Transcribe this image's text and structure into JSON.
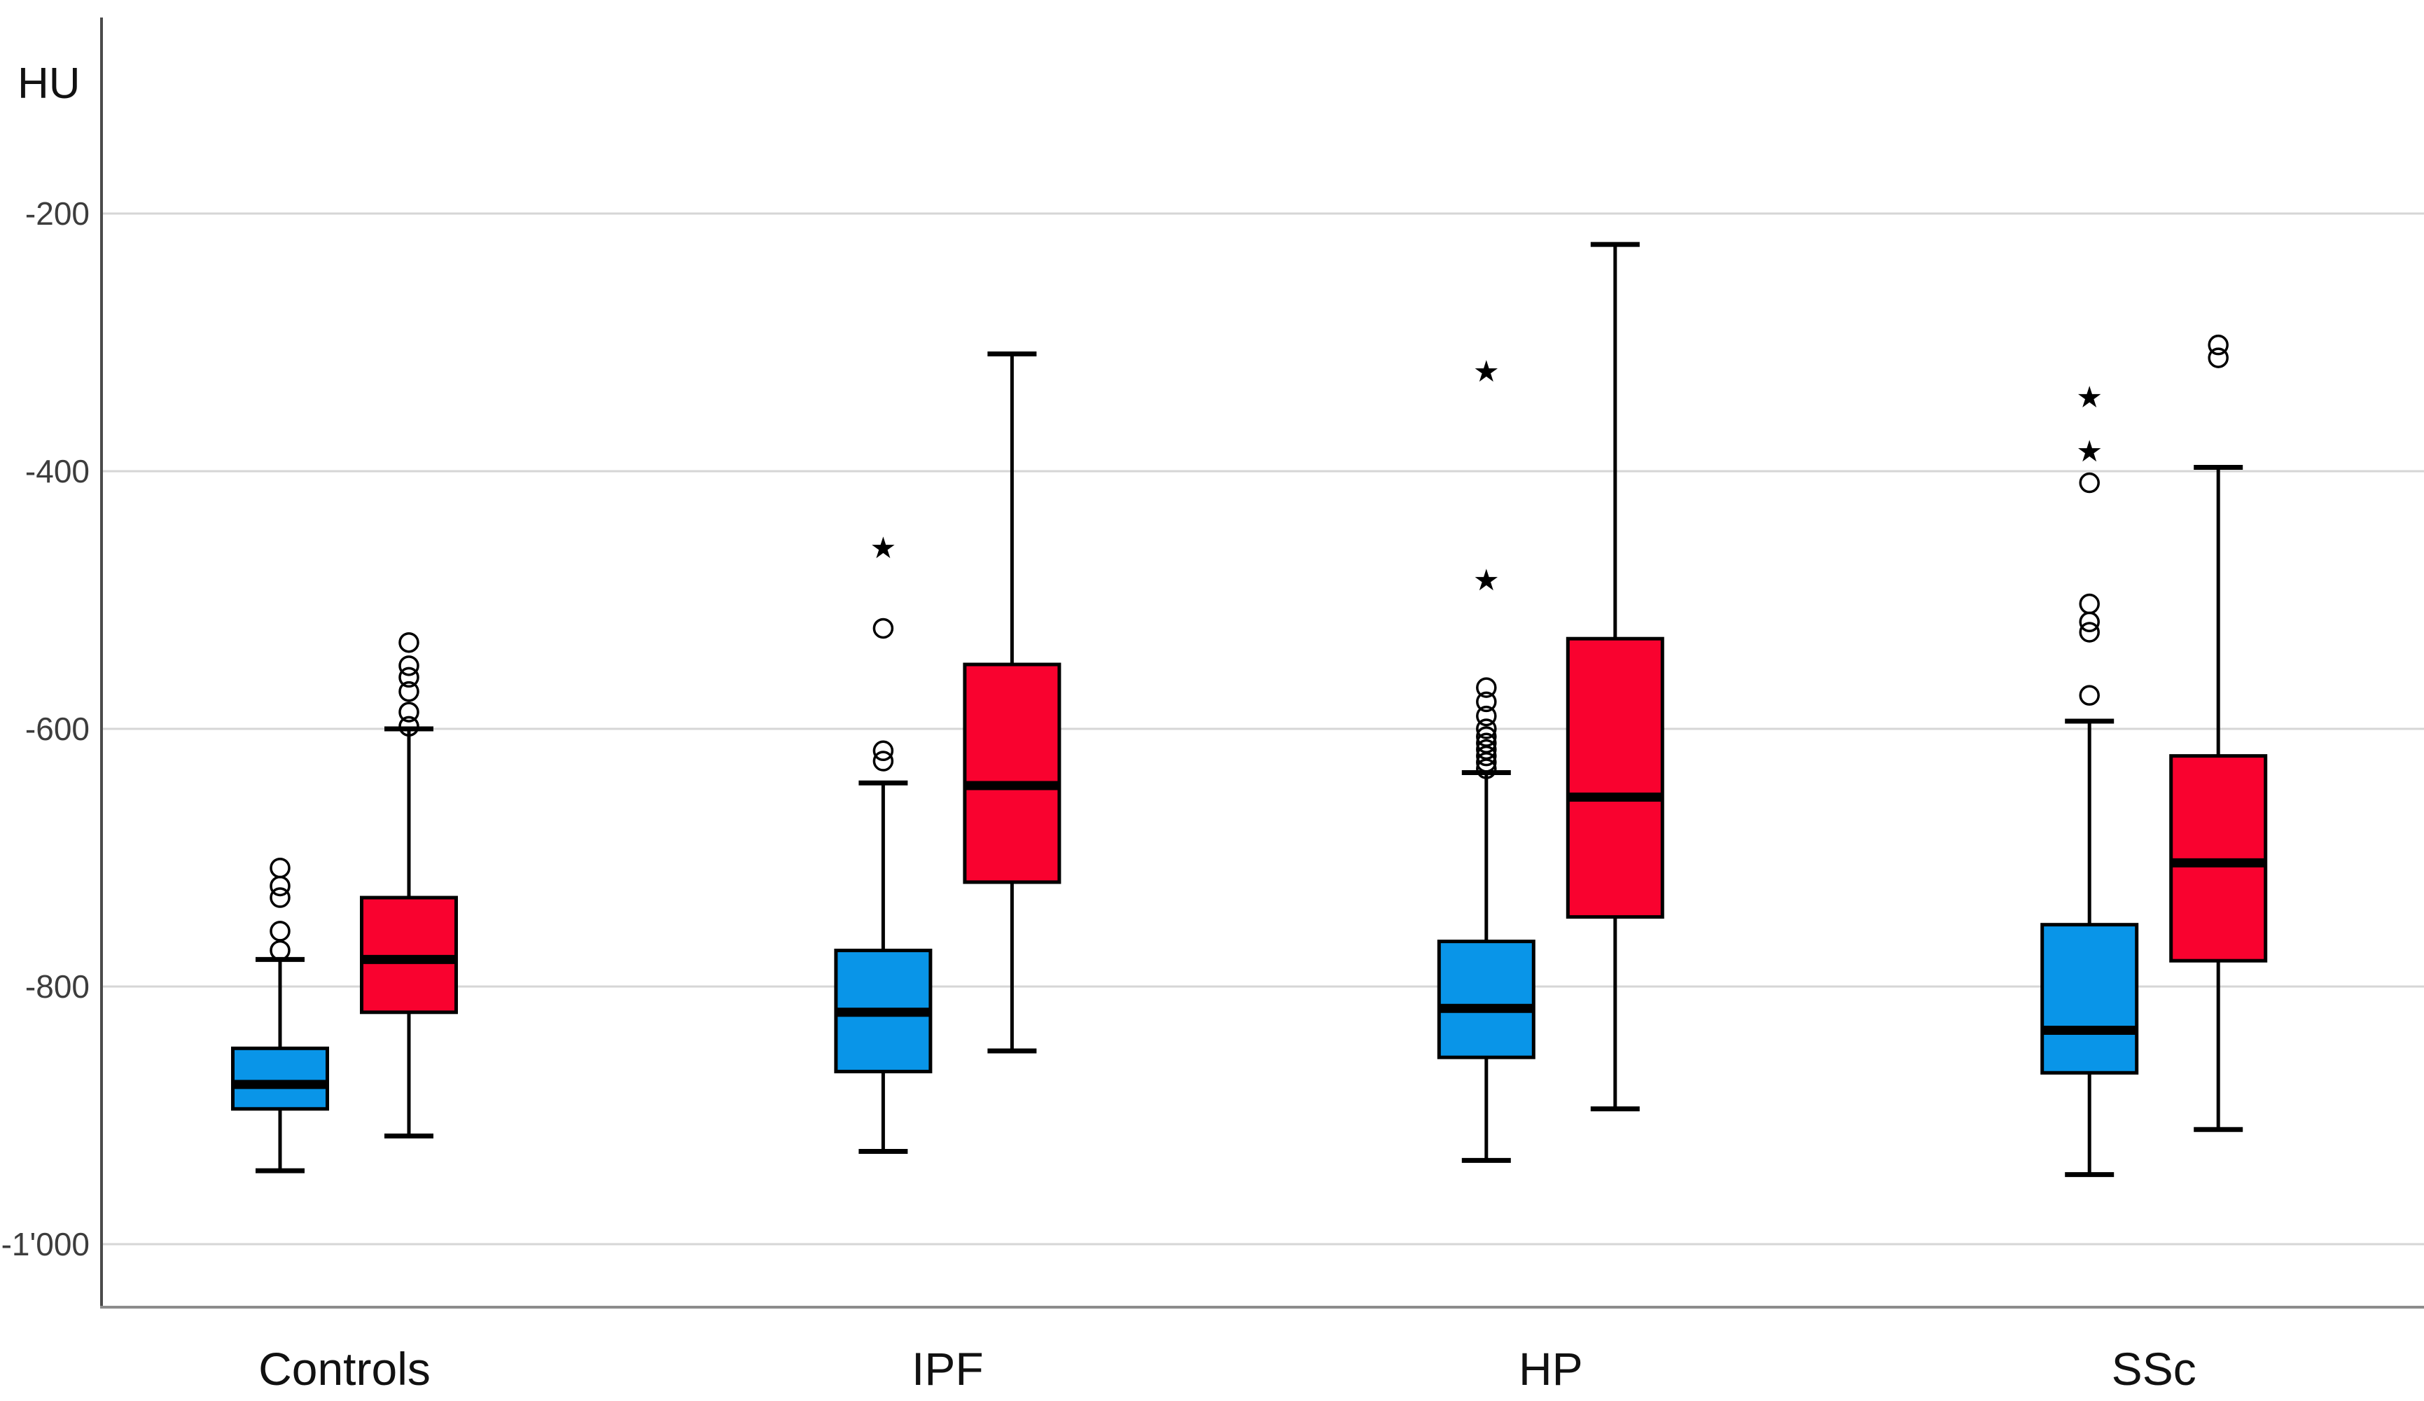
{
  "chart_data": {
    "type": "boxplot",
    "title": "",
    "ylabel": "HU",
    "xlabel": "",
    "grid": "horizontal",
    "legend": "none",
    "ylim": [
      -1049,
      -64
    ],
    "categories": [
      "Controls",
      "IPF",
      "HP",
      "SSc"
    ],
    "yticks": [
      {
        "value": -200,
        "label": "-200"
      },
      {
        "value": -400,
        "label": "-400"
      },
      {
        "value": -600,
        "label": "-600"
      },
      {
        "value": -800,
        "label": "-800"
      },
      {
        "value": -1000,
        "label": "-1'000"
      }
    ],
    "series": [
      {
        "name": "blue",
        "color": "#0995E8",
        "boxes": [
          {
            "category": "Controls",
            "whisker_low": -943,
            "q1": -895,
            "median": -876,
            "q3": -848,
            "whisker_high": -779,
            "outliers": [
              -708,
              -722,
              -731,
              -757,
              -772
            ],
            "extremes": []
          },
          {
            "category": "IPF",
            "whisker_low": -928,
            "q1": -866,
            "median": -820,
            "q3": -772,
            "whisker_high": -642,
            "outliers": [
              -617,
              -625,
              -522
            ],
            "extremes": [
              -460
            ]
          },
          {
            "category": "HP",
            "whisker_low": -935,
            "q1": -855,
            "median": -817,
            "q3": -765,
            "whisker_high": -634,
            "outliers": [
              -568,
              -579,
              -590,
              -600,
              -606,
              -611,
              -616,
              -621,
              -626,
              -631
            ],
            "extremes": [
              -485,
              -323
            ]
          },
          {
            "category": "SSc",
            "whisker_low": -946,
            "q1": -867,
            "median": -834,
            "q3": -752,
            "whisker_high": -594,
            "outliers": [
              -574,
              -525,
              -517,
              -503,
              -409
            ],
            "extremes": [
              -385,
              -343
            ]
          }
        ]
      },
      {
        "name": "red",
        "color": "#F9022F",
        "boxes": [
          {
            "category": "Controls",
            "whisker_low": -916,
            "q1": -820,
            "median": -779,
            "q3": -731,
            "whisker_high": -600,
            "outliers": [
              -533,
              -551,
              -560,
              -571,
              -587,
              -598
            ],
            "extremes": []
          },
          {
            "category": "IPF",
            "whisker_low": -850,
            "q1": -719,
            "median": -644,
            "q3": -550,
            "whisker_high": -309,
            "outliers": [],
            "extremes": []
          },
          {
            "category": "HP",
            "whisker_low": -895,
            "q1": -746,
            "median": -653,
            "q3": -530,
            "whisker_high": -224,
            "outliers": [],
            "extremes": []
          },
          {
            "category": "SSc",
            "whisker_low": -911,
            "q1": -780,
            "median": -704,
            "q3": -621,
            "whisker_high": -397,
            "outliers": [
              -302,
              -312
            ],
            "extremes": []
          }
        ]
      }
    ]
  }
}
